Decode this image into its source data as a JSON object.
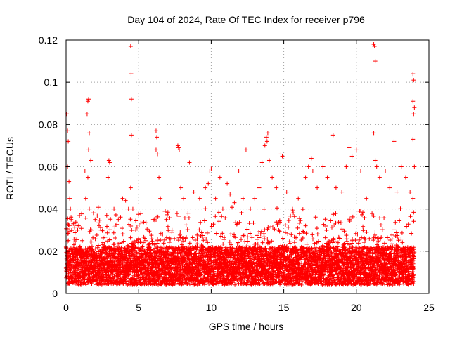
{
  "chart_data": {
    "type": "scatter",
    "title": "Day 104 of 2024, Rate Of TEC Index for receiver p796",
    "xlabel": "GPS time / hours",
    "ylabel": "ROTI / TECUs",
    "xlim": [
      0,
      25
    ],
    "ylim": [
      0,
      0.12
    ],
    "x_ticks": [
      0,
      5,
      10,
      15,
      20,
      25
    ],
    "x_tick_labels": [
      "0",
      "5",
      "10",
      "15",
      "20",
      "25"
    ],
    "y_ticks": [
      0,
      0.02,
      0.04,
      0.06,
      0.08,
      0.1,
      0.12
    ],
    "y_tick_labels": [
      "0",
      "0.02",
      "0.04",
      "0.06",
      "0.08",
      "0.1",
      "0.12"
    ],
    "grid": true,
    "marker": "+",
    "series": [
      {
        "name": "ROTI",
        "color": "#ff0000",
        "points": [
          [
            0.05,
            0.085
          ],
          [
            0.1,
            0.077
          ],
          [
            0.15,
            0.072
          ],
          [
            0.1,
            0.06
          ],
          [
            0.2,
            0.053
          ],
          [
            0.25,
            0.045
          ],
          [
            0.3,
            0.04
          ],
          [
            0.35,
            0.035
          ],
          [
            0.5,
            0.033
          ],
          [
            0.8,
            0.03
          ],
          [
            1.3,
            0.058
          ],
          [
            1.45,
            0.085
          ],
          [
            1.5,
            0.091
          ],
          [
            1.55,
            0.092
          ],
          [
            1.6,
            0.076
          ],
          [
            1.55,
            0.068
          ],
          [
            1.7,
            0.063
          ],
          [
            1.5,
            0.055
          ],
          [
            1.35,
            0.045
          ],
          [
            1.6,
            0.04
          ],
          [
            2.0,
            0.035
          ],
          [
            2.4,
            0.03
          ],
          [
            2.8,
            0.037
          ],
          [
            2.95,
            0.063
          ],
          [
            3.0,
            0.062
          ],
          [
            2.9,
            0.055
          ],
          [
            3.3,
            0.04
          ],
          [
            3.6,
            0.035
          ],
          [
            3.9,
            0.045
          ],
          [
            4.1,
            0.044
          ],
          [
            4.3,
            0.04
          ],
          [
            4.5,
            0.092
          ],
          [
            4.5,
            0.075
          ],
          [
            4.45,
            0.117
          ],
          [
            4.48,
            0.104
          ],
          [
            4.45,
            0.05
          ],
          [
            4.6,
            0.04
          ],
          [
            4.8,
            0.03
          ],
          [
            5.5,
            0.025
          ],
          [
            6.0,
            0.035
          ],
          [
            6.2,
            0.077
          ],
          [
            6.25,
            0.074
          ],
          [
            6.2,
            0.068
          ],
          [
            6.3,
            0.066
          ],
          [
            6.4,
            0.055
          ],
          [
            6.5,
            0.045
          ],
          [
            6.9,
            0.035
          ],
          [
            7.3,
            0.03
          ],
          [
            7.7,
            0.07
          ],
          [
            7.75,
            0.069
          ],
          [
            7.8,
            0.068
          ],
          [
            7.9,
            0.05
          ],
          [
            8.1,
            0.045
          ],
          [
            8.4,
            0.038
          ],
          [
            8.5,
            0.062
          ],
          [
            8.8,
            0.048
          ],
          [
            9.2,
            0.045
          ],
          [
            9.6,
            0.05
          ],
          [
            9.8,
            0.052
          ],
          [
            10.0,
            0.059
          ],
          [
            9.9,
            0.058
          ],
          [
            10.3,
            0.045
          ],
          [
            10.6,
            0.055
          ],
          [
            10.8,
            0.04
          ],
          [
            11.1,
            0.052
          ],
          [
            11.3,
            0.047
          ],
          [
            11.6,
            0.043
          ],
          [
            11.9,
            0.058
          ],
          [
            12.2,
            0.045
          ],
          [
            12.4,
            0.068
          ],
          [
            12.7,
            0.04
          ],
          [
            13.0,
            0.045
          ],
          [
            13.3,
            0.05
          ],
          [
            13.5,
            0.062
          ],
          [
            13.7,
            0.07
          ],
          [
            13.8,
            0.074
          ],
          [
            13.9,
            0.076
          ],
          [
            13.85,
            0.072
          ],
          [
            14.0,
            0.063
          ],
          [
            14.2,
            0.055
          ],
          [
            14.5,
            0.05
          ],
          [
            14.8,
            0.066
          ],
          [
            14.9,
            0.065
          ],
          [
            15.2,
            0.048
          ],
          [
            15.6,
            0.04
          ],
          [
            16.0,
            0.045
          ],
          [
            16.5,
            0.055
          ],
          [
            16.7,
            0.06
          ],
          [
            16.9,
            0.064
          ],
          [
            17.0,
            0.058
          ],
          [
            17.3,
            0.05
          ],
          [
            17.7,
            0.06
          ],
          [
            18.0,
            0.055
          ],
          [
            18.4,
            0.075
          ],
          [
            18.6,
            0.05
          ],
          [
            19.0,
            0.048
          ],
          [
            19.3,
            0.06
          ],
          [
            19.5,
            0.069
          ],
          [
            19.7,
            0.065
          ],
          [
            20.0,
            0.068
          ],
          [
            20.3,
            0.058
          ],
          [
            20.7,
            0.045
          ],
          [
            21.2,
            0.118
          ],
          [
            21.25,
            0.117
          ],
          [
            21.3,
            0.11
          ],
          [
            21.2,
            0.076
          ],
          [
            21.3,
            0.063
          ],
          [
            21.4,
            0.06
          ],
          [
            21.6,
            0.055
          ],
          [
            22.0,
            0.058
          ],
          [
            22.3,
            0.05
          ],
          [
            22.6,
            0.072
          ],
          [
            22.8,
            0.048
          ],
          [
            23.1,
            0.06
          ],
          [
            23.4,
            0.055
          ],
          [
            23.7,
            0.048
          ],
          [
            23.9,
            0.104
          ],
          [
            23.95,
            0.101
          ],
          [
            23.9,
            0.091
          ],
          [
            24.0,
            0.088
          ],
          [
            23.95,
            0.085
          ],
          [
            23.9,
            0.073
          ],
          [
            24.0,
            0.06
          ],
          [
            23.9,
            0.045
          ]
        ]
      }
    ]
  }
}
